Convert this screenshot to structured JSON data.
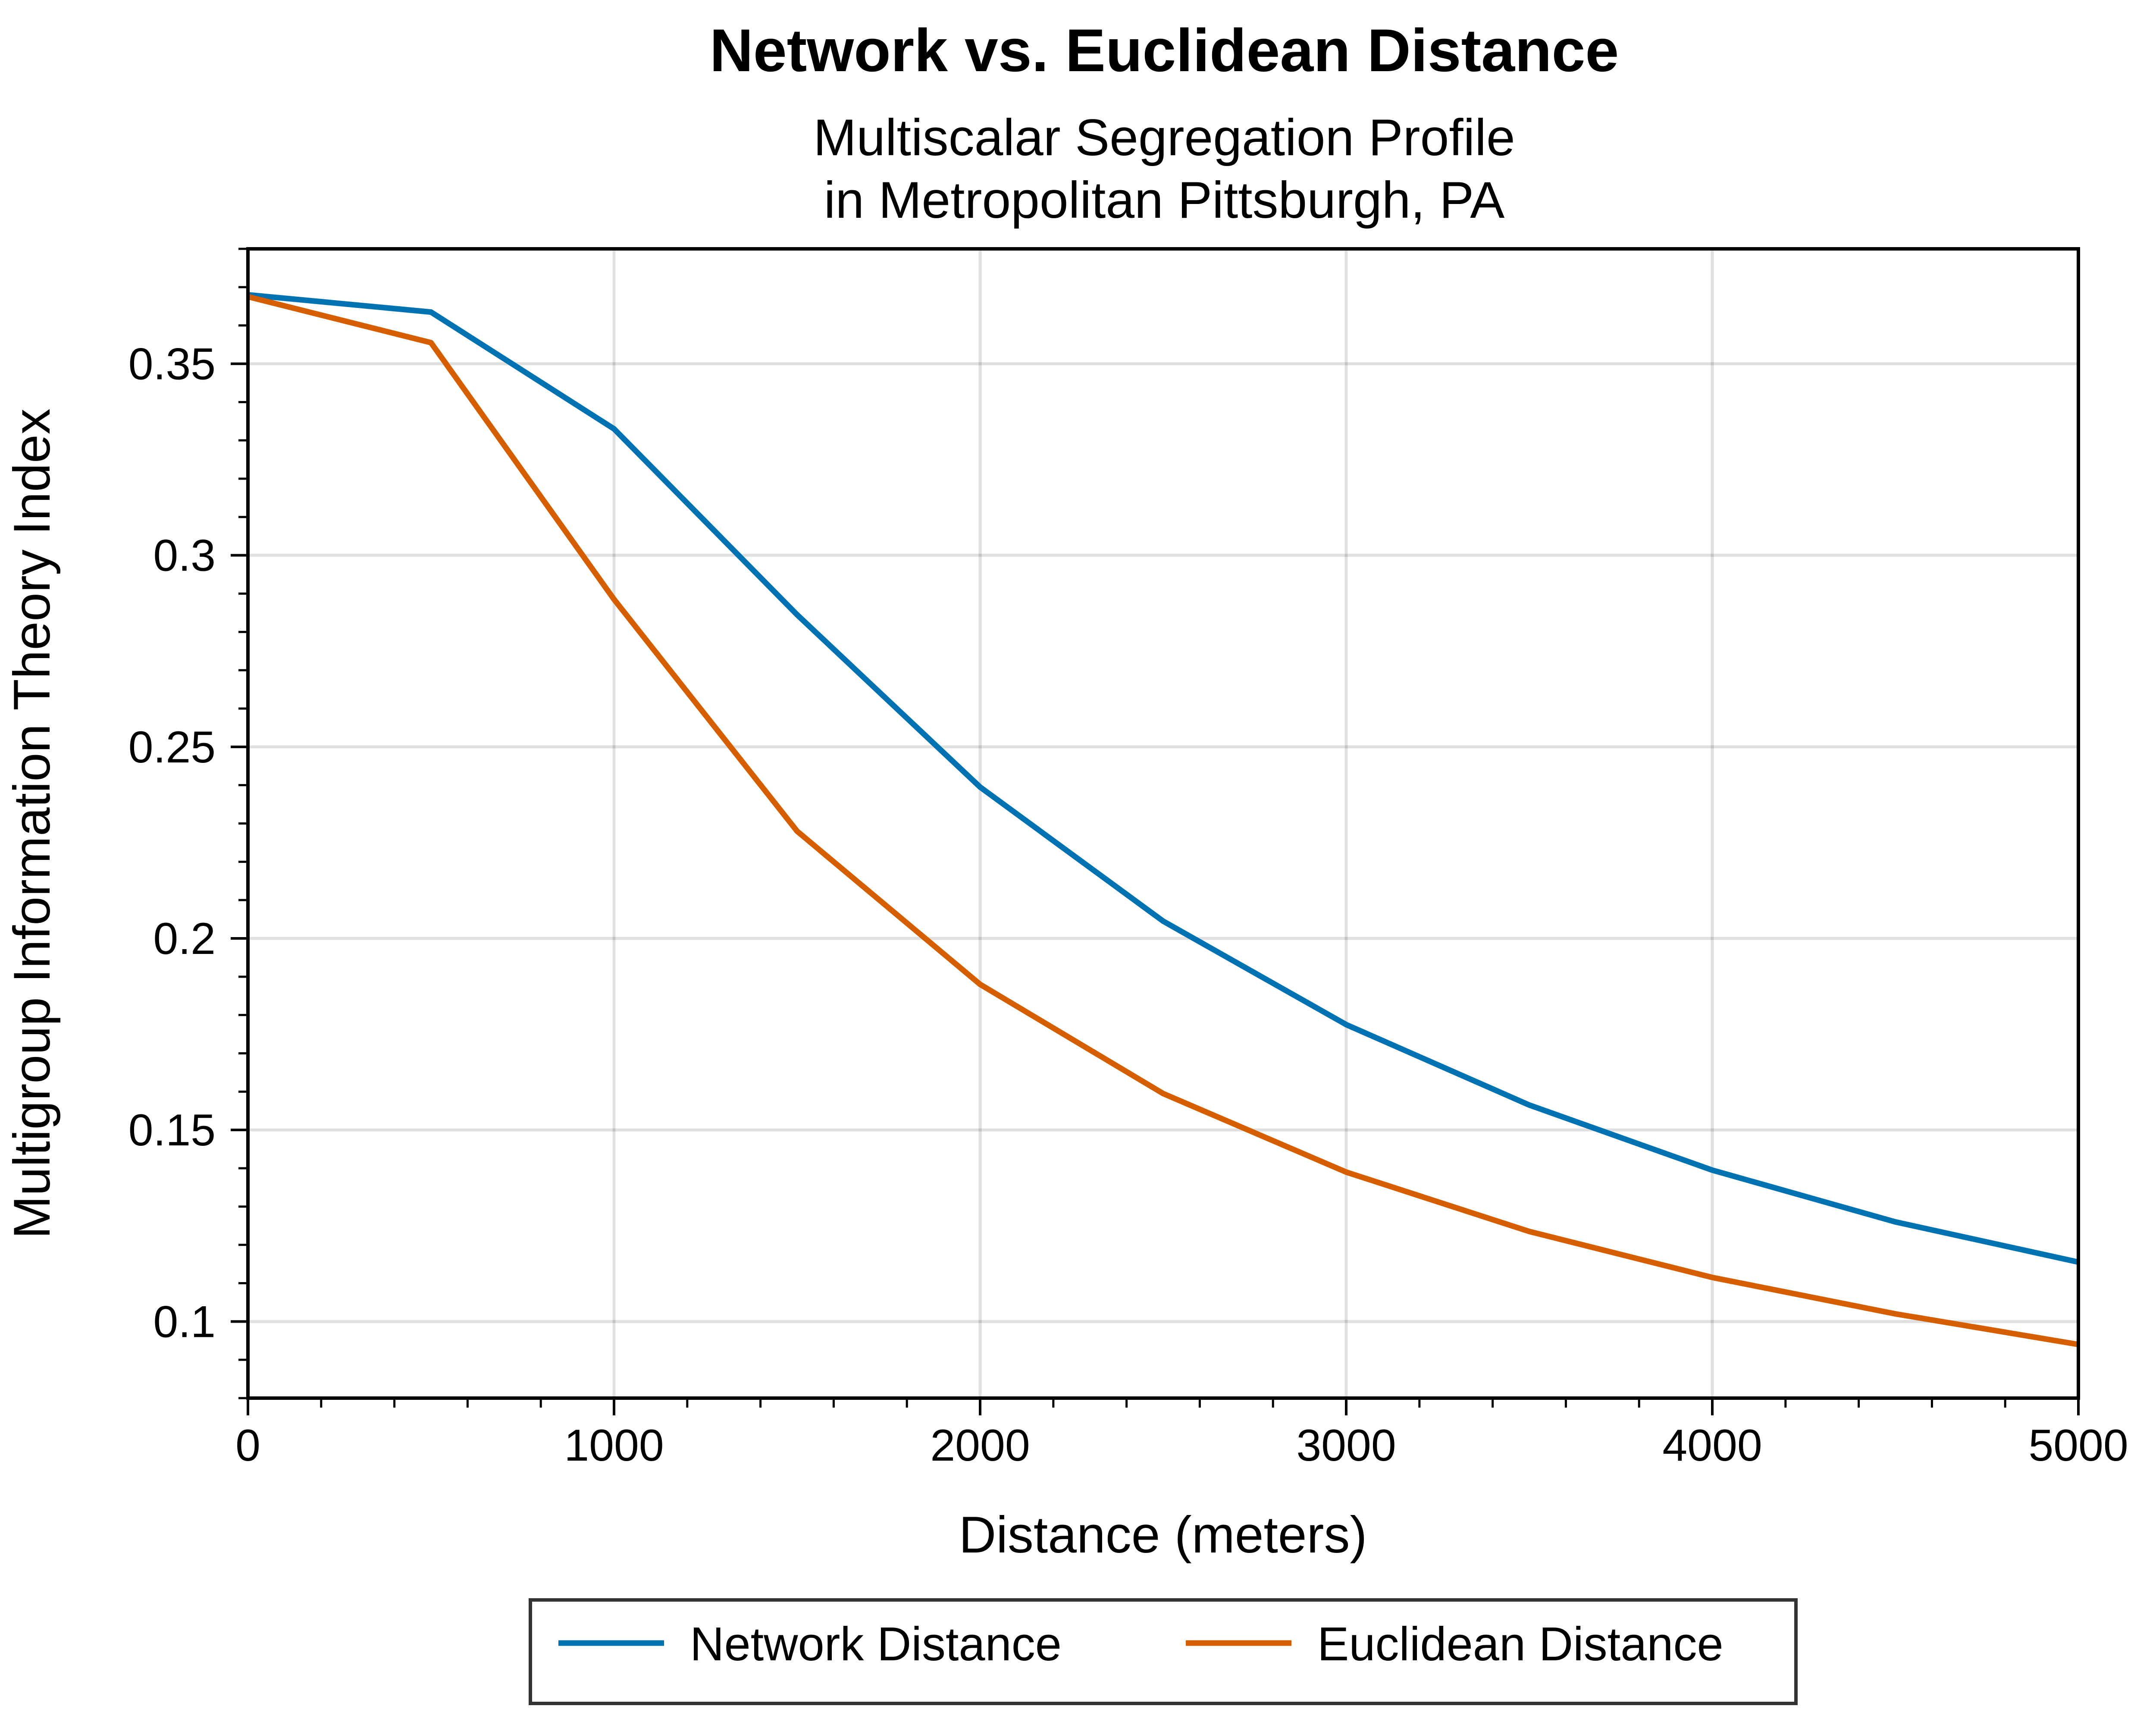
{
  "chart_data": {
    "type": "line",
    "title": "Network vs. Euclidean Distance",
    "subtitle_lines": [
      "Multiscalar Segregation Profile",
      "in Metropolitan Pittsburgh, PA"
    ],
    "xlabel": "Distance (meters)",
    "ylabel": "Multigroup Information Theory Index",
    "xlim": [
      0,
      5000
    ],
    "ylim": [
      0.08,
      0.38
    ],
    "xticks": [
      0,
      1000,
      2000,
      3000,
      4000,
      5000
    ],
    "xtick_labels": [
      "0",
      "1000",
      "2000",
      "3000",
      "4000",
      "5000"
    ],
    "yticks": [
      0.1,
      0.15,
      0.2,
      0.25,
      0.3,
      0.35
    ],
    "ytick_labels": [
      "0.1",
      "0.15",
      "0.2",
      "0.25",
      "0.3",
      "0.35"
    ],
    "grid": true,
    "legend_position": "bottom-center",
    "x": [
      0,
      500,
      1000,
      1500,
      2000,
      2500,
      3000,
      3500,
      4000,
      4500,
      5000
    ],
    "series": [
      {
        "name": "Network Distance",
        "color": "#0072b2",
        "values": [
          0.368,
          0.3635,
          0.333,
          0.2845,
          0.2395,
          0.2045,
          0.1775,
          0.1565,
          0.1395,
          0.126,
          0.1155
        ]
      },
      {
        "name": "Euclidean Distance",
        "color": "#d55e00",
        "values": [
          0.3675,
          0.3555,
          0.2885,
          0.228,
          0.188,
          0.1595,
          0.139,
          0.1235,
          0.1115,
          0.102,
          0.094
        ]
      }
    ]
  }
}
